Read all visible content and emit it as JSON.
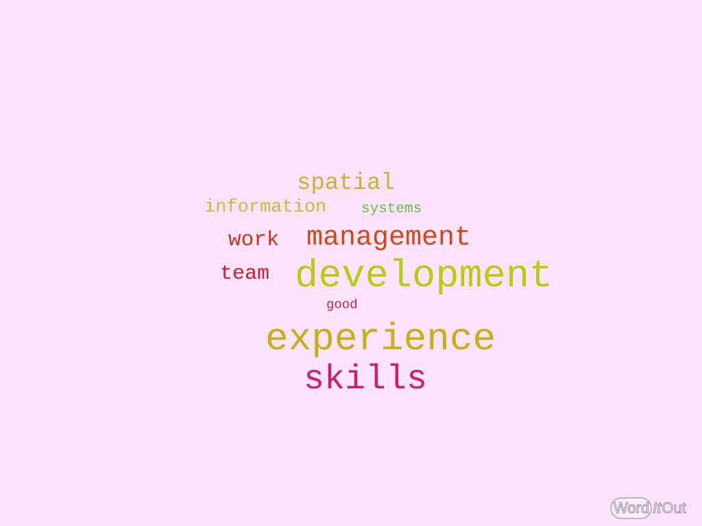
{
  "background": "#fde3fd",
  "words": {
    "spatial": {
      "text": "spatial",
      "color": "#cbb22c"
    },
    "information": {
      "text": "information",
      "color": "#d3b63a"
    },
    "systems": {
      "text": "systems",
      "color": "#62c23a"
    },
    "work": {
      "text": "work",
      "color": "#c9371a"
    },
    "management": {
      "text": "management",
      "color": "#ce4a14"
    },
    "team": {
      "text": "team",
      "color": "#cf1f28"
    },
    "development": {
      "text": "development",
      "color": "#b7cc15"
    },
    "good": {
      "text": "good",
      "color": "#d0243a"
    },
    "experience": {
      "text": "experience",
      "color": "#c5b016"
    },
    "skills": {
      "text": "skills",
      "color": "#cc1f6b"
    }
  },
  "logo": {
    "word": "Word",
    "it": "It",
    "out": "Out"
  }
}
